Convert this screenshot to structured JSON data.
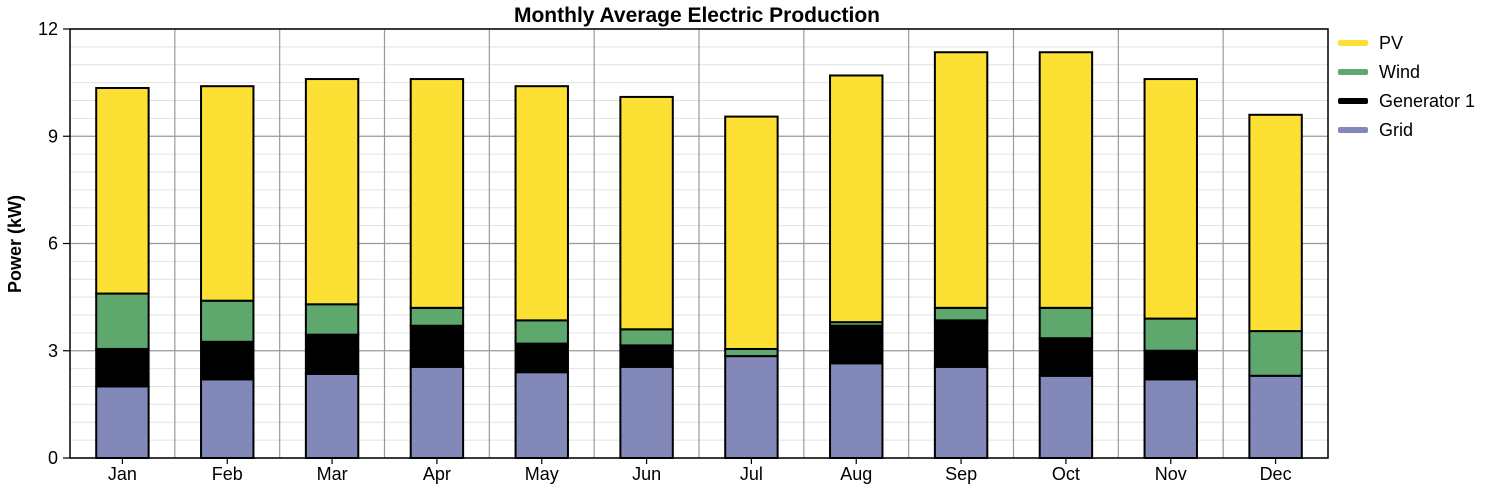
{
  "chart_data": {
    "type": "bar",
    "stacked": true,
    "title": "Monthly Average Electric Production",
    "xlabel": "",
    "ylabel": "Power (kW)",
    "ylim": [
      0,
      12
    ],
    "yticks": [
      0,
      3,
      6,
      9,
      12
    ],
    "grid": true,
    "legend_position": "right",
    "categories": [
      "Jan",
      "Feb",
      "Mar",
      "Apr",
      "May",
      "Jun",
      "Jul",
      "Aug",
      "Sep",
      "Oct",
      "Nov",
      "Dec"
    ],
    "series": [
      {
        "name": "Grid",
        "color": "#8288b8",
        "values": [
          2.0,
          2.2,
          2.35,
          2.55,
          2.4,
          2.55,
          2.85,
          2.65,
          2.55,
          2.3,
          2.2,
          2.3
        ]
      },
      {
        "name": "Generator 1",
        "color": "#000000",
        "values": [
          1.05,
          1.05,
          1.1,
          1.15,
          0.8,
          0.6,
          0.0,
          1.05,
          1.3,
          1.05,
          0.8,
          0.0
        ]
      },
      {
        "name": "Wind",
        "color": "#5ea86e",
        "values": [
          1.55,
          1.15,
          0.85,
          0.5,
          0.65,
          0.45,
          0.2,
          0.1,
          0.35,
          0.85,
          0.9,
          1.25
        ]
      },
      {
        "name": "PV",
        "color": "#fde034",
        "values": [
          5.75,
          6.0,
          6.3,
          6.4,
          6.55,
          6.5,
          6.5,
          6.9,
          7.15,
          7.15,
          6.7,
          6.05
        ]
      }
    ],
    "legend": [
      "PV",
      "Wind",
      "Generator 1",
      "Grid"
    ]
  }
}
